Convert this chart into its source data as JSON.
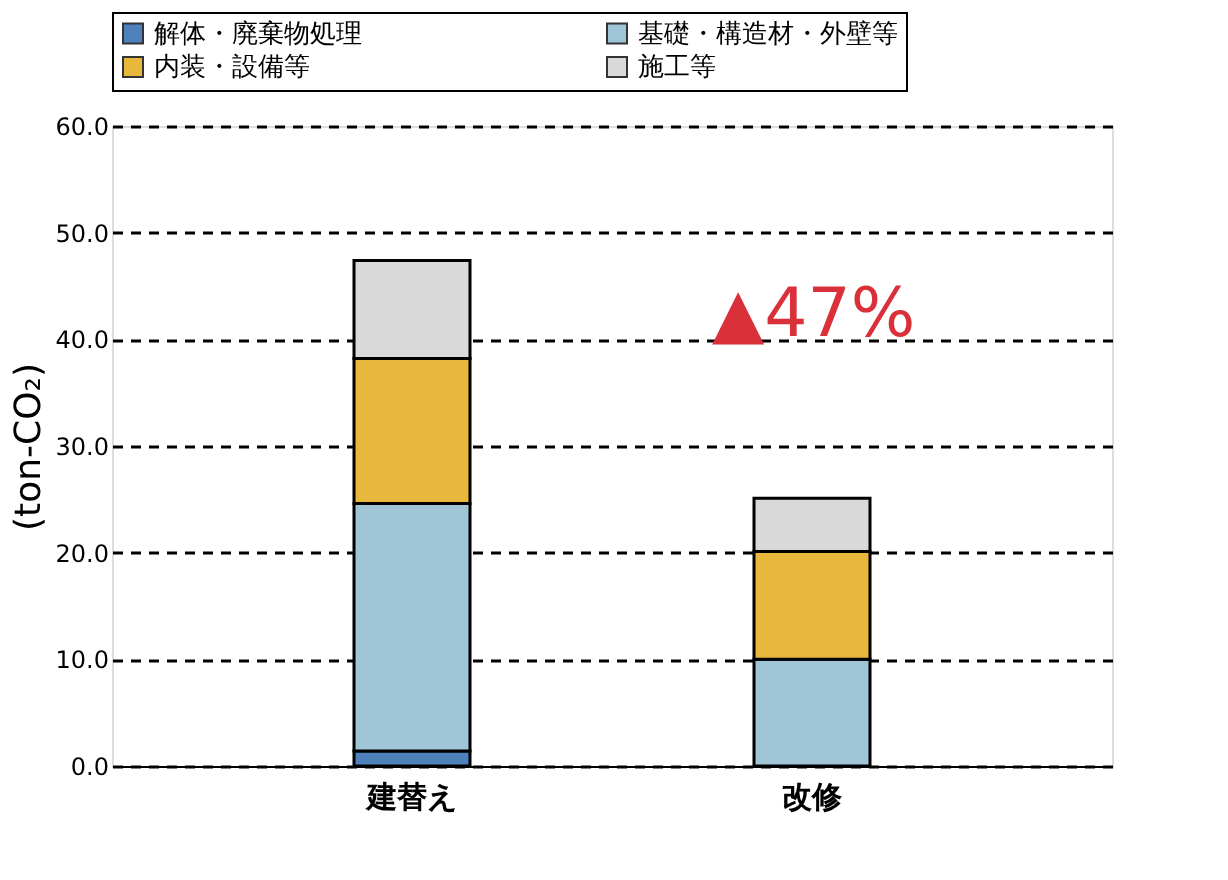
{
  "chart_data": {
    "type": "bar",
    "stacked": true,
    "ylabel": "(ton-CO₂)",
    "categories": [
      "建替え",
      "改修"
    ],
    "series": [
      {
        "name": "解体・廃棄物処理",
        "color": "#4f81bd",
        "values": [
          1.4,
          0
        ]
      },
      {
        "name": "基礎・構造材・外壁等",
        "color": "#9fc5d6",
        "values": [
          23.2,
          10.0
        ]
      },
      {
        "name": "内装・設備等",
        "color": "#e8b83c",
        "values": [
          13.6,
          10.1
        ]
      },
      {
        "name": "施工等",
        "color": "#d9d9d9",
        "values": [
          9.2,
          5.0
        ]
      }
    ],
    "ylim": [
      0,
      60
    ],
    "yticks": [
      {
        "value": 0,
        "label": "0.0"
      },
      {
        "value": 10,
        "label": "10.0"
      },
      {
        "value": 20,
        "label": "20.0"
      },
      {
        "value": 30,
        "label": "30.0"
      },
      {
        "value": 40,
        "label": "40.0"
      },
      {
        "value": 50,
        "label": "50.0"
      },
      {
        "value": 60,
        "label": "60.0"
      }
    ],
    "grid": "y",
    "legend": "top",
    "annotations": [
      "▲47%"
    ]
  }
}
